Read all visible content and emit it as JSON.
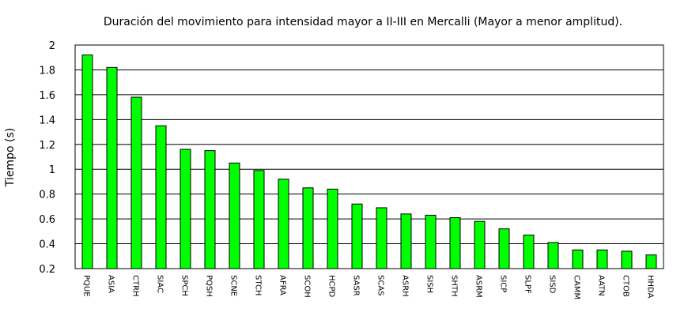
{
  "chart_data": {
    "type": "bar",
    "title": "Duración del movimiento para intensidad mayor a II-III en Mercalli (Mayor a menor amplitud).",
    "xlabel": "",
    "ylabel": "Tiempo (s)",
    "ylim": [
      0.2,
      2.0
    ],
    "yticks": [
      "0.2",
      "0.4",
      "0.6",
      "0.8",
      "1",
      "1.2",
      "1.4",
      "1.6",
      "1.8",
      "2"
    ],
    "grid": true,
    "categories": [
      "PQUE",
      "ASIA",
      "CTRH",
      "SIAC",
      "SPCH",
      "PQSH",
      "SCNE",
      "STCH",
      "AFRA",
      "SCOH",
      "HCPD",
      "SASR",
      "SCAS",
      "ASRH",
      "SISH",
      "SHTH",
      "ASRM",
      "SICP",
      "SLPF",
      "SISD",
      "CAMM",
      "AATN",
      "CTOB",
      "HHDA"
    ],
    "values": [
      1.92,
      1.82,
      1.58,
      1.35,
      1.16,
      1.15,
      1.05,
      0.99,
      0.92,
      0.85,
      0.84,
      0.72,
      0.69,
      0.64,
      0.63,
      0.61,
      0.58,
      0.52,
      0.47,
      0.41,
      0.35,
      0.35,
      0.34,
      0.31
    ],
    "colors": {
      "bar": "#00ff00",
      "bar_stroke": "#000000",
      "grid": "#000000"
    }
  }
}
